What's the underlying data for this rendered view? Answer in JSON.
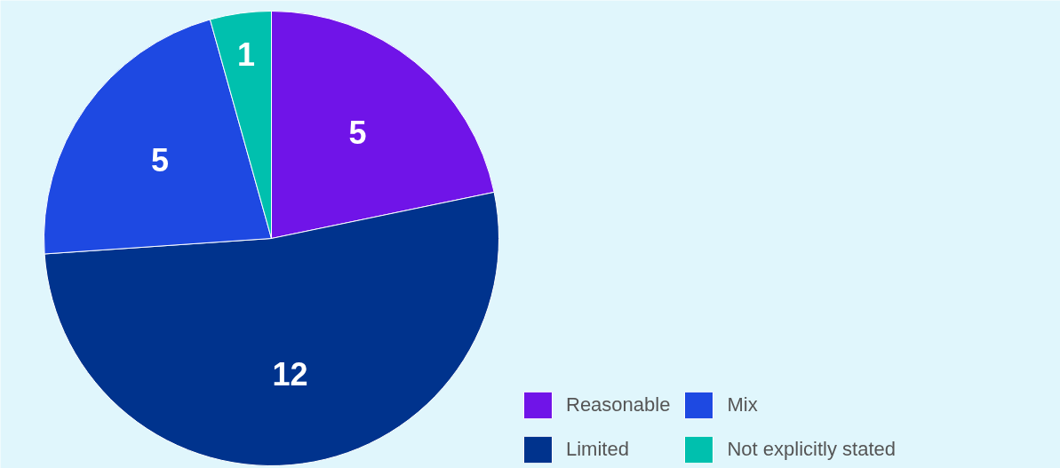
{
  "chart_data": {
    "type": "pie",
    "categories": [
      "Reasonable",
      "Limited",
      "Mix",
      "Not explicitly stated"
    ],
    "values": [
      5,
      12,
      5,
      1
    ],
    "colors": [
      "#7014e8",
      "#00338d",
      "#1e49e2",
      "#00c0ae"
    ],
    "data_labels": true,
    "legend": "bottom right"
  }
}
